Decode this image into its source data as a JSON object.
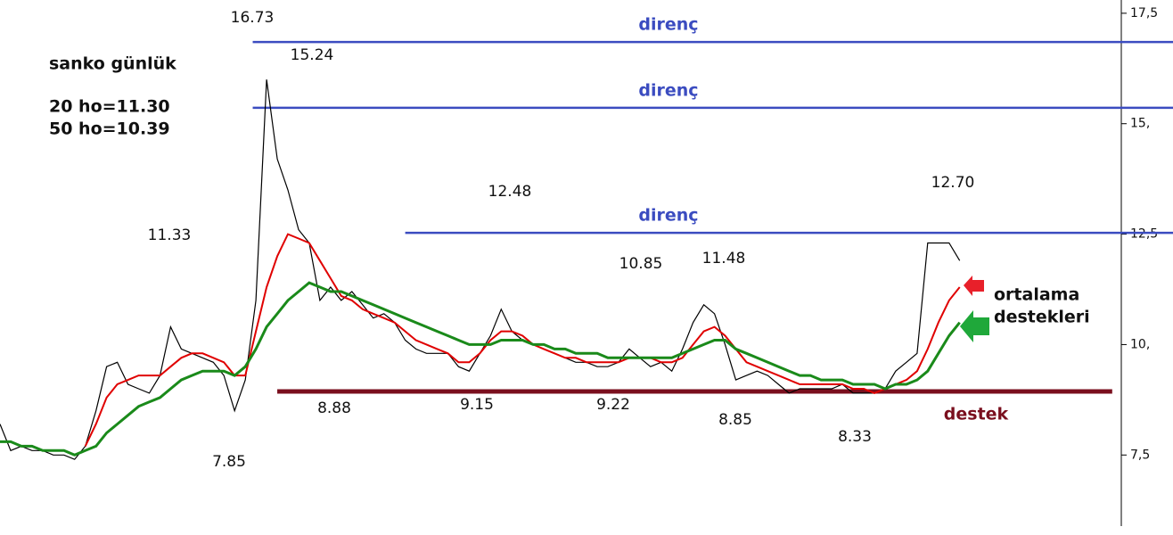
{
  "chart_data": {
    "type": "line",
    "title": "sanko günlük",
    "subtitle": [
      "20 ho=11.30",
      "50 ho=10.39"
    ],
    "x": [
      0,
      1,
      2,
      3,
      4,
      5,
      6,
      7,
      8,
      9,
      10,
      11,
      12,
      13,
      14,
      15,
      16,
      17,
      18,
      19,
      20,
      21,
      22,
      23,
      24,
      25,
      26,
      27,
      28,
      29,
      30,
      31,
      32,
      33,
      34,
      35,
      36,
      37,
      38,
      39,
      40,
      41,
      42,
      43,
      44,
      45,
      46,
      47,
      48,
      49,
      50,
      51,
      52,
      53,
      54,
      55,
      56,
      57,
      58,
      59,
      60,
      61,
      62,
      63,
      64,
      65,
      66,
      67,
      68,
      69,
      70,
      71,
      72,
      73,
      74,
      75,
      76,
      77,
      78,
      79,
      80,
      81,
      82,
      83,
      84,
      85,
      86,
      87,
      88,
      89,
      90
    ],
    "xlim": [
      0,
      110
    ],
    "ylim": [
      5.77,
      17.8
    ],
    "yticks": [
      {
        "value": 7.5,
        "label": "7,5"
      },
      {
        "value": 10,
        "label": "10,"
      },
      {
        "value": 12.5,
        "label": "12,5"
      },
      {
        "value": 15,
        "label": "15,"
      },
      {
        "value": 17.5,
        "label": "17,5"
      }
    ],
    "series": [
      {
        "color": "#000000",
        "values": [
          8.2,
          7.6,
          7.7,
          7.6,
          7.6,
          7.5,
          7.5,
          7.4,
          7.7,
          8.5,
          9.5,
          9.6,
          9.1,
          9.0,
          8.9,
          9.3,
          10.4,
          9.9,
          9.8,
          9.7,
          9.6,
          9.3,
          8.5,
          9.2,
          11.0,
          16.0,
          14.2,
          13.5,
          12.6,
          12.3,
          11.0,
          11.3,
          11.0,
          11.2,
          10.9,
          10.6,
          10.7,
          10.5,
          10.1,
          9.9,
          9.8,
          9.8,
          9.8,
          9.5,
          9.4,
          9.8,
          10.2,
          10.8,
          10.3,
          10.1,
          10.0,
          9.9,
          9.8,
          9.7,
          9.6,
          9.6,
          9.5,
          9.5,
          9.6,
          9.9,
          9.7,
          9.5,
          9.6,
          9.4,
          9.9,
          10.5,
          10.9,
          10.7,
          10.0,
          9.2,
          9.3,
          9.4,
          9.3,
          9.1,
          8.9,
          9.0,
          9.0,
          9.0,
          9.0,
          9.1,
          8.9,
          8.9,
          8.9,
          9.0,
          9.4,
          9.6,
          9.8,
          12.3,
          12.3,
          12.3,
          11.9
        ]
      },
      {
        "color": "#e00000",
        "values": [
          null,
          null,
          null,
          null,
          null,
          null,
          null,
          null,
          7.7,
          8.2,
          8.8,
          9.1,
          9.2,
          9.3,
          9.3,
          9.3,
          9.5,
          9.7,
          9.8,
          9.8,
          9.7,
          9.6,
          9.3,
          9.3,
          10.3,
          11.3,
          12.0,
          12.5,
          12.4,
          12.3,
          11.9,
          11.5,
          11.1,
          11.0,
          10.8,
          10.7,
          10.6,
          10.5,
          10.3,
          10.1,
          10.0,
          9.9,
          9.8,
          9.6,
          9.6,
          9.8,
          10.1,
          10.3,
          10.3,
          10.2,
          10.0,
          9.9,
          9.8,
          9.7,
          9.7,
          9.6,
          9.6,
          9.6,
          9.6,
          9.7,
          9.7,
          9.7,
          9.6,
          9.6,
          9.7,
          10.0,
          10.3,
          10.4,
          10.2,
          9.9,
          9.6,
          9.5,
          9.4,
          9.3,
          9.2,
          9.1,
          9.1,
          9.1,
          9.1,
          9.1,
          9.0,
          9.0,
          8.9,
          9.0,
          9.1,
          9.2,
          9.4,
          9.9,
          10.5,
          11.0,
          11.3
        ]
      },
      {
        "color": "#1a8a1a",
        "values": [
          7.8,
          7.8,
          7.7,
          7.7,
          7.6,
          7.6,
          7.6,
          7.5,
          7.6,
          7.7,
          8.0,
          8.2,
          8.4,
          8.6,
          8.7,
          8.8,
          9.0,
          9.2,
          9.3,
          9.4,
          9.4,
          9.4,
          9.3,
          9.5,
          9.9,
          10.4,
          10.7,
          11.0,
          11.2,
          11.4,
          11.3,
          11.2,
          11.2,
          11.1,
          11.0,
          10.9,
          10.8,
          10.7,
          10.6,
          10.5,
          10.4,
          10.3,
          10.2,
          10.1,
          10.0,
          10.0,
          10.0,
          10.1,
          10.1,
          10.1,
          10.0,
          10.0,
          9.9,
          9.9,
          9.8,
          9.8,
          9.8,
          9.7,
          9.7,
          9.7,
          9.7,
          9.7,
          9.7,
          9.7,
          9.8,
          9.9,
          10.0,
          10.1,
          10.1,
          9.9,
          9.8,
          9.7,
          9.6,
          9.5,
          9.4,
          9.3,
          9.3,
          9.2,
          9.2,
          9.2,
          9.1,
          9.1,
          9.1,
          9.0,
          9.1,
          9.1,
          9.2,
          9.4,
          9.8,
          10.2,
          10.5
        ]
      }
    ],
    "levels": [
      {
        "label": "direnç",
        "value": 16.85,
        "x": [
          23.7,
          110
        ],
        "color": "#3b4cc0"
      },
      {
        "label": "direnç",
        "value": 15.36,
        "x": [
          23.7,
          110
        ],
        "color": "#3b4cc0"
      },
      {
        "label": "direnç",
        "value": 12.53,
        "x": [
          38,
          110
        ],
        "color": "#3b4cc0"
      },
      {
        "label": "destek",
        "value": 8.94,
        "x": [
          26,
          104.3
        ],
        "color": "#7a0f1e"
      }
    ],
    "annotations": [
      "16.73",
      "15.24",
      "11.33",
      "7.85",
      "8.88",
      "12.48",
      "9.15",
      "10.85",
      "11.48",
      "9.22",
      "8.85",
      "12.70",
      "8.33"
    ],
    "note": [
      "ortalama",
      "destekleri"
    ]
  }
}
